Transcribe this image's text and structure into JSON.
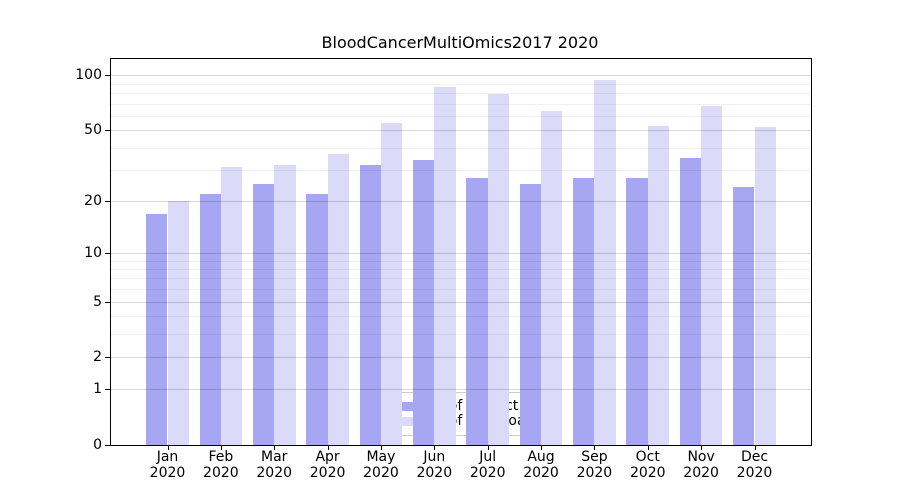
{
  "chart_data": {
    "type": "bar",
    "title": "BloodCancerMultiOmics2017 2020",
    "x": [
      "Jan",
      "Feb",
      "Mar",
      "Apr",
      "May",
      "Jun",
      "Jul",
      "Aug",
      "Sep",
      "Oct",
      "Nov",
      "Dec"
    ],
    "year": "2020",
    "series": [
      {
        "key": "ips",
        "name": "Nb of distinct IPs",
        "color": "#a6a6f3",
        "values": [
          17,
          22,
          25,
          22,
          32,
          34,
          27,
          25,
          27,
          27,
          35,
          24
        ]
      },
      {
        "key": "downloads",
        "name": "Nb of downloads",
        "color": "#dbdbf9",
        "values": [
          20,
          31,
          32,
          37,
          55,
          86,
          79,
          64,
          95,
          53,
          68,
          52
        ]
      }
    ],
    "y_scale": "log10(1+v)",
    "ylim": [
      0,
      123
    ],
    "y_major_ticks": [
      0,
      1,
      2,
      5,
      10,
      20,
      50,
      100
    ],
    "y_minor_ticks": [
      3,
      4,
      6,
      7,
      8,
      9,
      30,
      40,
      60,
      70,
      80,
      90
    ],
    "grid": true,
    "legend_position": "lower center"
  }
}
